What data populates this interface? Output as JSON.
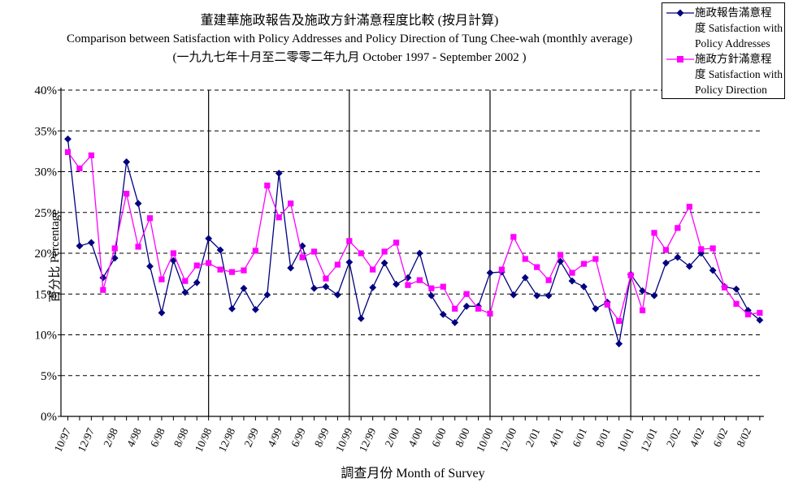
{
  "title": {
    "zh": "董建華施政報告及施政方針滿意程度比較 (按月計算)",
    "en": "Comparison between Satisfaction with Policy Addresses and Policy Direction of Tung Chee-wah (monthly average)",
    "period": "(一九九七年十月至二零零二年九月 October 1997 - September 2002 )"
  },
  "axes": {
    "y_label": "百分比 Percentage",
    "x_label": "調查月份 Month of Survey",
    "y_tick_labels": [
      "0%",
      "5%",
      "10%",
      "15%",
      "20%",
      "25%",
      "30%",
      "35%",
      "40%"
    ],
    "x_label_every": 2
  },
  "legend": {
    "entries": [
      {
        "id": "policy-addresses",
        "marker": "diamond",
        "color": "#000080",
        "lines": [
          "施政報告滿意程",
          "度 Satisfaction with",
          "Policy Addresses"
        ]
      },
      {
        "id": "policy-direction",
        "marker": "square",
        "color": "#ff00ff",
        "lines": [
          "施政方針滿意程",
          "度 Satisfaction with",
          "Policy Direction"
        ]
      }
    ]
  },
  "chart_data": {
    "type": "line",
    "title": "董建華施政報告及施政方針滿意程度比較 (按月計算) Comparison between Satisfaction with Policy Addresses and Policy Direction of Tung Chee-wah (monthly average), October 1997 - September 2002",
    "xlabel": "調查月份 Month of Survey",
    "ylabel": "百分比 Percentage",
    "ylim": [
      0,
      40
    ],
    "y_step": 5,
    "grid": "horizontal-dashed",
    "legend_position": "top-right",
    "vertical_lines_at": [
      "10/98",
      "10/99",
      "10/00",
      "10/01"
    ],
    "x": [
      "10/97",
      "11/97",
      "12/97",
      "1/98",
      "2/98",
      "3/98",
      "4/98",
      "5/98",
      "6/98",
      "7/98",
      "8/98",
      "9/98",
      "10/98",
      "11/98",
      "12/98",
      "1/99",
      "2/99",
      "3/99",
      "4/99",
      "5/99",
      "6/99",
      "7/99",
      "8/99",
      "9/99",
      "10/99",
      "11/99",
      "12/99",
      "1/00",
      "2/00",
      "3/00",
      "4/00",
      "5/00",
      "6/00",
      "7/00",
      "8/00",
      "9/00",
      "10/00",
      "11/00",
      "12/00",
      "1/01",
      "2/01",
      "3/01",
      "4/01",
      "5/01",
      "6/01",
      "7/01",
      "8/01",
      "9/01",
      "10/01",
      "11/01",
      "12/01",
      "1/02",
      "2/02",
      "3/02",
      "4/02",
      "5/02",
      "6/02",
      "7/02",
      "8/02",
      "9/02"
    ],
    "series": [
      {
        "name": "施政報告滿意程度 Satisfaction with Policy Addresses",
        "color": "#000080",
        "marker": "diamond",
        "values": [
          34.0,
          20.9,
          21.3,
          17.0,
          19.4,
          31.2,
          26.1,
          18.4,
          12.7,
          19.1,
          15.2,
          16.4,
          21.8,
          20.4,
          13.2,
          15.7,
          13.1,
          14.9,
          29.8,
          18.2,
          20.9,
          15.7,
          15.9,
          14.9,
          18.9,
          12.0,
          15.8,
          18.8,
          16.2,
          17.0,
          20.0,
          14.8,
          12.5,
          11.5,
          13.5,
          13.5,
          17.6,
          17.7,
          14.9,
          17.0,
          14.8,
          14.8,
          19.0,
          16.6,
          15.9,
          13.2,
          14.0,
          8.9,
          17.4,
          15.4,
          14.8,
          18.8,
          19.5,
          18.4,
          20.0,
          17.9,
          15.9,
          15.6,
          13.0,
          11.8
        ]
      },
      {
        "name": "施政方針滿意程度 Satisfaction with Policy Direction",
        "color": "#ff00ff",
        "marker": "square",
        "values": [
          32.4,
          30.4,
          32.0,
          15.5,
          20.6,
          27.3,
          20.8,
          24.3,
          16.8,
          20.0,
          16.6,
          18.5,
          18.8,
          18.0,
          17.7,
          17.9,
          20.3,
          28.3,
          24.4,
          26.1,
          19.5,
          20.2,
          16.9,
          18.6,
          21.5,
          20.0,
          18.0,
          20.2,
          21.3,
          16.1,
          16.7,
          15.7,
          15.9,
          13.2,
          15.0,
          13.2,
          12.6,
          18.0,
          22.0,
          19.3,
          18.3,
          16.7,
          19.8,
          17.6,
          18.7,
          19.3,
          13.7,
          11.7,
          17.3,
          13.0,
          22.5,
          20.4,
          23.1,
          25.7,
          20.5,
          20.6,
          15.8,
          13.8,
          12.5,
          12.7
        ]
      }
    ]
  }
}
